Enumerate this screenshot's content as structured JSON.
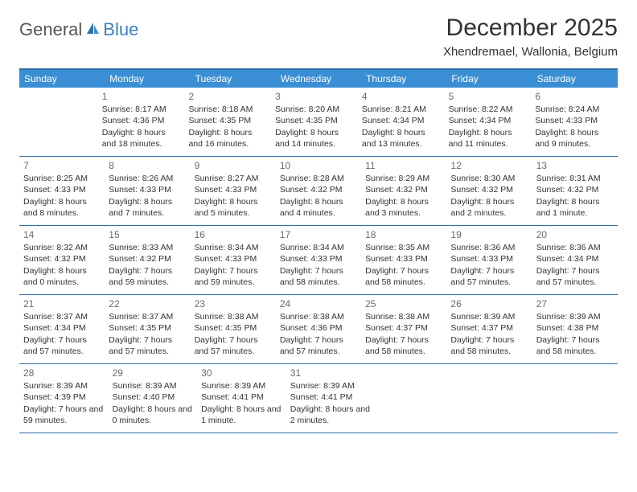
{
  "logo": {
    "text1": "General",
    "text2": "Blue"
  },
  "title": "December 2025",
  "location": "Xhendremael, Wallonia, Belgium",
  "colors": {
    "header_bar": "#3a8fd4",
    "rule": "#2f6fa8",
    "logo_blue": "#3a7fc4",
    "text": "#333333",
    "background": "#ffffff"
  },
  "weekdays": [
    "Sunday",
    "Monday",
    "Tuesday",
    "Wednesday",
    "Thursday",
    "Friday",
    "Saturday"
  ],
  "weeks": [
    [
      null,
      {
        "n": "1",
        "sr": "8:17 AM",
        "ss": "4:36 PM",
        "dl": "8 hours and 18 minutes."
      },
      {
        "n": "2",
        "sr": "8:18 AM",
        "ss": "4:35 PM",
        "dl": "8 hours and 16 minutes."
      },
      {
        "n": "3",
        "sr": "8:20 AM",
        "ss": "4:35 PM",
        "dl": "8 hours and 14 minutes."
      },
      {
        "n": "4",
        "sr": "8:21 AM",
        "ss": "4:34 PM",
        "dl": "8 hours and 13 minutes."
      },
      {
        "n": "5",
        "sr": "8:22 AM",
        "ss": "4:34 PM",
        "dl": "8 hours and 11 minutes."
      },
      {
        "n": "6",
        "sr": "8:24 AM",
        "ss": "4:33 PM",
        "dl": "8 hours and 9 minutes."
      }
    ],
    [
      {
        "n": "7",
        "sr": "8:25 AM",
        "ss": "4:33 PM",
        "dl": "8 hours and 8 minutes."
      },
      {
        "n": "8",
        "sr": "8:26 AM",
        "ss": "4:33 PM",
        "dl": "8 hours and 7 minutes."
      },
      {
        "n": "9",
        "sr": "8:27 AM",
        "ss": "4:33 PM",
        "dl": "8 hours and 5 minutes."
      },
      {
        "n": "10",
        "sr": "8:28 AM",
        "ss": "4:32 PM",
        "dl": "8 hours and 4 minutes."
      },
      {
        "n": "11",
        "sr": "8:29 AM",
        "ss": "4:32 PM",
        "dl": "8 hours and 3 minutes."
      },
      {
        "n": "12",
        "sr": "8:30 AM",
        "ss": "4:32 PM",
        "dl": "8 hours and 2 minutes."
      },
      {
        "n": "13",
        "sr": "8:31 AM",
        "ss": "4:32 PM",
        "dl": "8 hours and 1 minute."
      }
    ],
    [
      {
        "n": "14",
        "sr": "8:32 AM",
        "ss": "4:32 PM",
        "dl": "8 hours and 0 minutes."
      },
      {
        "n": "15",
        "sr": "8:33 AM",
        "ss": "4:32 PM",
        "dl": "7 hours and 59 minutes."
      },
      {
        "n": "16",
        "sr": "8:34 AM",
        "ss": "4:33 PM",
        "dl": "7 hours and 59 minutes."
      },
      {
        "n": "17",
        "sr": "8:34 AM",
        "ss": "4:33 PM",
        "dl": "7 hours and 58 minutes."
      },
      {
        "n": "18",
        "sr": "8:35 AM",
        "ss": "4:33 PM",
        "dl": "7 hours and 58 minutes."
      },
      {
        "n": "19",
        "sr": "8:36 AM",
        "ss": "4:33 PM",
        "dl": "7 hours and 57 minutes."
      },
      {
        "n": "20",
        "sr": "8:36 AM",
        "ss": "4:34 PM",
        "dl": "7 hours and 57 minutes."
      }
    ],
    [
      {
        "n": "21",
        "sr": "8:37 AM",
        "ss": "4:34 PM",
        "dl": "7 hours and 57 minutes."
      },
      {
        "n": "22",
        "sr": "8:37 AM",
        "ss": "4:35 PM",
        "dl": "7 hours and 57 minutes."
      },
      {
        "n": "23",
        "sr": "8:38 AM",
        "ss": "4:35 PM",
        "dl": "7 hours and 57 minutes."
      },
      {
        "n": "24",
        "sr": "8:38 AM",
        "ss": "4:36 PM",
        "dl": "7 hours and 57 minutes."
      },
      {
        "n": "25",
        "sr": "8:38 AM",
        "ss": "4:37 PM",
        "dl": "7 hours and 58 minutes."
      },
      {
        "n": "26",
        "sr": "8:39 AM",
        "ss": "4:37 PM",
        "dl": "7 hours and 58 minutes."
      },
      {
        "n": "27",
        "sr": "8:39 AM",
        "ss": "4:38 PM",
        "dl": "7 hours and 58 minutes."
      }
    ],
    [
      {
        "n": "28",
        "sr": "8:39 AM",
        "ss": "4:39 PM",
        "dl": "7 hours and 59 minutes."
      },
      {
        "n": "29",
        "sr": "8:39 AM",
        "ss": "4:40 PM",
        "dl": "8 hours and 0 minutes."
      },
      {
        "n": "30",
        "sr": "8:39 AM",
        "ss": "4:41 PM",
        "dl": "8 hours and 1 minute."
      },
      {
        "n": "31",
        "sr": "8:39 AM",
        "ss": "4:41 PM",
        "dl": "8 hours and 2 minutes."
      },
      null,
      null,
      null
    ]
  ],
  "labels": {
    "sunrise": "Sunrise:",
    "sunset": "Sunset:",
    "daylight": "Daylight:"
  }
}
